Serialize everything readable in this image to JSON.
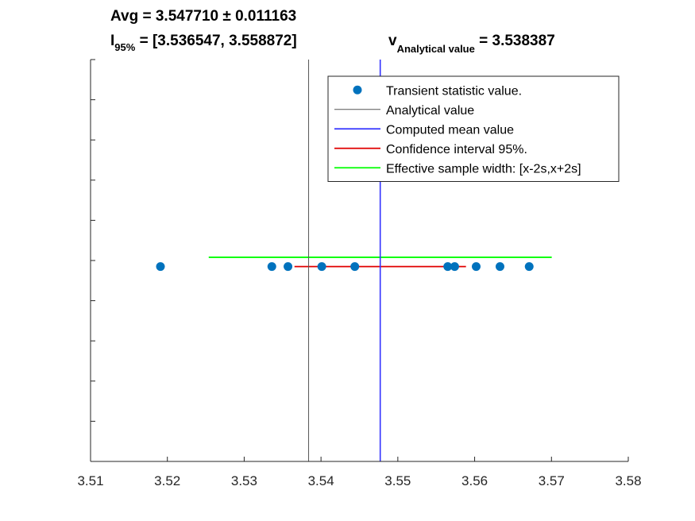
{
  "chart_data": {
    "type": "scatter",
    "title": {
      "avg_line": "Avg = 3.547710 ± 0.011163",
      "ci_prefix": "I",
      "ci_subscript": "95%",
      "ci_value": " = [3.536547, 3.558872]",
      "analytical_prefix": "v",
      "analytical_subscript": "Analytical value",
      "analytical_value": " = 3.538387"
    },
    "xlabel": "",
    "ylabel": "",
    "xlim": [
      3.51,
      3.58
    ],
    "ylim": [
      0,
      1
    ],
    "x_ticks": [
      3.51,
      3.52,
      3.53,
      3.54,
      3.55,
      3.56,
      3.57,
      3.58
    ],
    "x_tick_labels": [
      "3.51",
      "3.52",
      "3.53",
      "3.54",
      "3.55",
      "3.56",
      "3.57",
      "3.58"
    ],
    "y_ticks": [
      0.1,
      0.2,
      0.3,
      0.4,
      0.5,
      0.6,
      0.7,
      0.8,
      0.9,
      1.0
    ],
    "grid": false,
    "legend_position": "top-right",
    "series": [
      {
        "name": "Transient statistic value.",
        "kind": "scatter",
        "color": "#0072BD",
        "x": [
          3.5191,
          3.5336,
          3.5357,
          3.5401,
          3.5444,
          3.5565,
          3.5574,
          3.5602,
          3.5633,
          3.5671
        ],
        "y": [
          0.485,
          0.485,
          0.485,
          0.485,
          0.485,
          0.485,
          0.485,
          0.485,
          0.485,
          0.485
        ]
      },
      {
        "name": "Analytical value",
        "kind": "vline",
        "color": "#555555",
        "x": 3.538387
      },
      {
        "name": "Computed mean value",
        "kind": "vline",
        "color": "#3333ff",
        "x": 3.54771
      },
      {
        "name": "Confidence interval 95%.",
        "kind": "hline",
        "color": "#e00000",
        "x": [
          3.536547,
          3.558872
        ],
        "y": 0.485
      },
      {
        "name": "Effective sample width: [x-2s,x+2s]",
        "kind": "hline",
        "color": "#00ff00",
        "x": [
          3.525384,
          3.570036
        ],
        "y": 0.508
      }
    ]
  }
}
